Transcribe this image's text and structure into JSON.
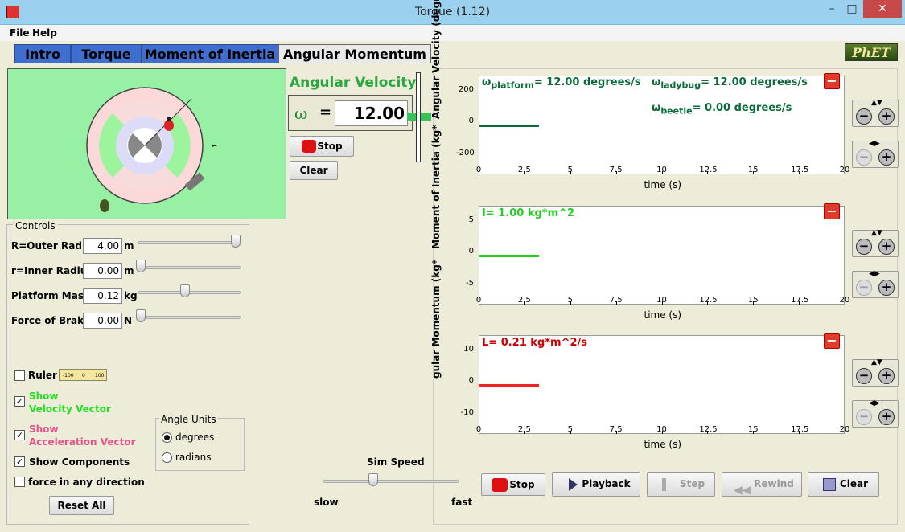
{
  "window": {
    "title": "Torque (1.12)"
  },
  "menu": [
    "File",
    "Help"
  ],
  "tabs": [
    "Intro",
    "Torque",
    "Moment of Inertia",
    "Angular Momentum"
  ],
  "logo": "PhET",
  "angular_velocity": {
    "title": "Angular Velocity",
    "symbol": "ω",
    "equals": "=",
    "value": "12.00"
  },
  "sim_buttons": {
    "stop": "Stop",
    "clear": "Clear"
  },
  "controls": {
    "title": "Controls",
    "rows": [
      {
        "label": "R=Outer Radius",
        "value": "4.00",
        "unit": "m",
        "slider": 1.0
      },
      {
        "label": "r=Inner Radius",
        "value": "0.00",
        "unit": "m",
        "slider": 0.0
      },
      {
        "label": "Platform Mass",
        "value": "0.12",
        "unit": "kg",
        "slider": 0.47
      },
      {
        "label": "Force of Brake",
        "value": "0.00",
        "unit": "N",
        "slider": 0.0
      }
    ],
    "ruler": "Ruler",
    "ruler_ticks": [
      "-100",
      "0",
      "100"
    ],
    "show_velocity": [
      "Show",
      "Velocity Vector"
    ],
    "show_accel": [
      "Show",
      "Acceleration Vector"
    ],
    "show_components": "Show Components",
    "force_any": "force in any direction",
    "reset": "Reset All",
    "angle_units": {
      "title": "Angle Units",
      "options": [
        "degrees",
        "radians"
      ],
      "selected": "degrees"
    }
  },
  "sim_speed": {
    "title": "Sim Speed",
    "slow": "slow",
    "fast": "fast",
    "level": 0.37
  },
  "graphs": [
    {
      "ylabel": "Angular Velocity (degre",
      "yticks": [
        "200",
        "0",
        "-200"
      ],
      "legend": [
        {
          "prefix": "ω",
          "sub": "platform",
          "text": "= 12.00 degrees/s",
          "color": "#0c6b3a"
        },
        {
          "prefix": "ω",
          "sub": "ladybug",
          "text": "= 12.00 degrees/s",
          "color": "#0c6b3a"
        },
        {
          "prefix": "ω",
          "sub": "beetle",
          "text": "= 0.00 degrees/s",
          "color": "#0c6b3a"
        }
      ],
      "line_color": "#0c6b3a"
    },
    {
      "ylabel": "Moment of Inertia (kg*",
      "yticks": [
        "5",
        "0",
        "-5"
      ],
      "legend": [
        {
          "prefix": "",
          "sub": "",
          "text": "I= 1.00 kg*m^2",
          "color": "#22cc22"
        }
      ],
      "line_color": "#22cc22"
    },
    {
      "ylabel": "gular Momentum (kg*",
      "yticks": [
        "10",
        "0",
        "-10"
      ],
      "legend": [
        {
          "prefix": "",
          "sub": "",
          "text": "L= 0.21 kg*m^2/s",
          "color": "#cc0000"
        }
      ],
      "line_color": "#ee2222"
    }
  ],
  "xticks": [
    "0",
    "2.5",
    "5",
    "7.5",
    "10",
    "12.5",
    "15",
    "17.5",
    "20"
  ],
  "xlabel": "time (s)",
  "playback": {
    "stop": "Stop",
    "playback": "Playback",
    "step": "Step",
    "rewind": "Rewind",
    "clear": "Clear"
  },
  "zoom": {
    "minus": "−",
    "plus": "+"
  }
}
